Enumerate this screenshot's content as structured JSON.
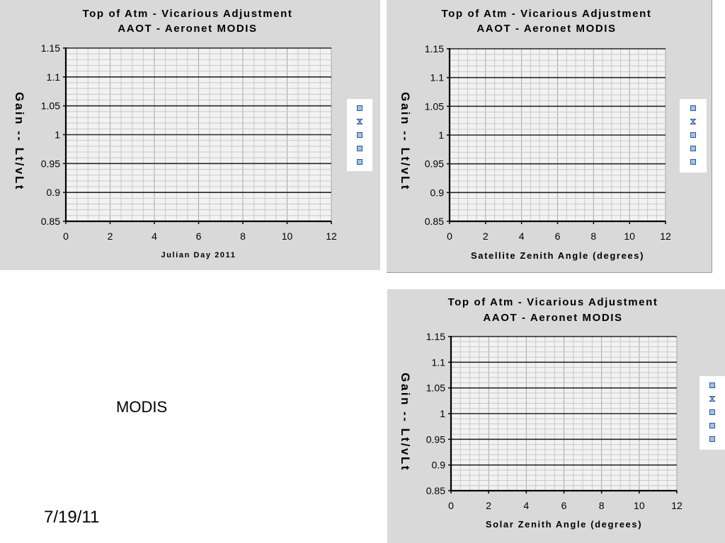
{
  "slide": {
    "label": "MODIS",
    "date": "7/19/11"
  },
  "colors": {
    "panel_bg": "#d9d9d9",
    "plot_bg": "#f2f2f2",
    "legend_marker_fill": "#9dc3e6",
    "legend_marker_stroke": "#2f5597"
  },
  "chart_data": [
    {
      "type": "scatter",
      "title": "Top of Atm - Vicarious Adjustment",
      "subtitle": "AAOT - Aeronet   MODIS",
      "xlabel": "Julian Day 2011",
      "ylabel": "Gain  --  Lt/vLt",
      "xlim": [
        0,
        12
      ],
      "ylim": [
        0.85,
        1.15
      ],
      "xticks": [
        "0",
        "2",
        "4",
        "6",
        "8",
        "10",
        "12"
      ],
      "yticks": [
        "0.85",
        "0.9",
        "0.95",
        "1",
        "1.05",
        "1.1",
        "1.15"
      ],
      "grid": true,
      "legend_position": "right",
      "legend_markers": [
        "square",
        "hourglass",
        "square",
        "square",
        "square"
      ],
      "series": []
    },
    {
      "type": "scatter",
      "title": "Top of Atm - Vicarious Adjustment",
      "subtitle": "AAOT - Aeronet MODIS",
      "xlabel": "Satellite Zenith Angle  (degrees)",
      "ylabel": "Gain  --  Lt/vLt",
      "xlim": [
        0,
        12
      ],
      "ylim": [
        0.85,
        1.15
      ],
      "xticks": [
        "0",
        "2",
        "4",
        "6",
        "8",
        "10",
        "12"
      ],
      "yticks": [
        "0.85",
        "0.9",
        "0.95",
        "1",
        "1.05",
        "1.1",
        "1.15"
      ],
      "grid": true,
      "legend_position": "right",
      "legend_markers": [
        "square",
        "hourglass",
        "square",
        "square",
        "square"
      ],
      "series": []
    },
    {
      "type": "scatter",
      "title": "Top of Atm - Vicarious Adjustment",
      "subtitle": "AAOT - Aeronet  MODIS",
      "xlabel": "Solar Zenith  Angle  (degrees)",
      "ylabel": "Gain  --  Lt/vLt",
      "xlim": [
        0,
        12
      ],
      "ylim": [
        0.85,
        1.15
      ],
      "xticks": [
        "0",
        "2",
        "4",
        "6",
        "8",
        "10",
        "12"
      ],
      "yticks": [
        "0.85",
        "0.9",
        "0.95",
        "1",
        "1.05",
        "1.1",
        "1.15"
      ],
      "grid": true,
      "legend_position": "right",
      "legend_markers": [
        "square",
        "hourglass",
        "square",
        "square",
        "square"
      ],
      "series": []
    }
  ]
}
